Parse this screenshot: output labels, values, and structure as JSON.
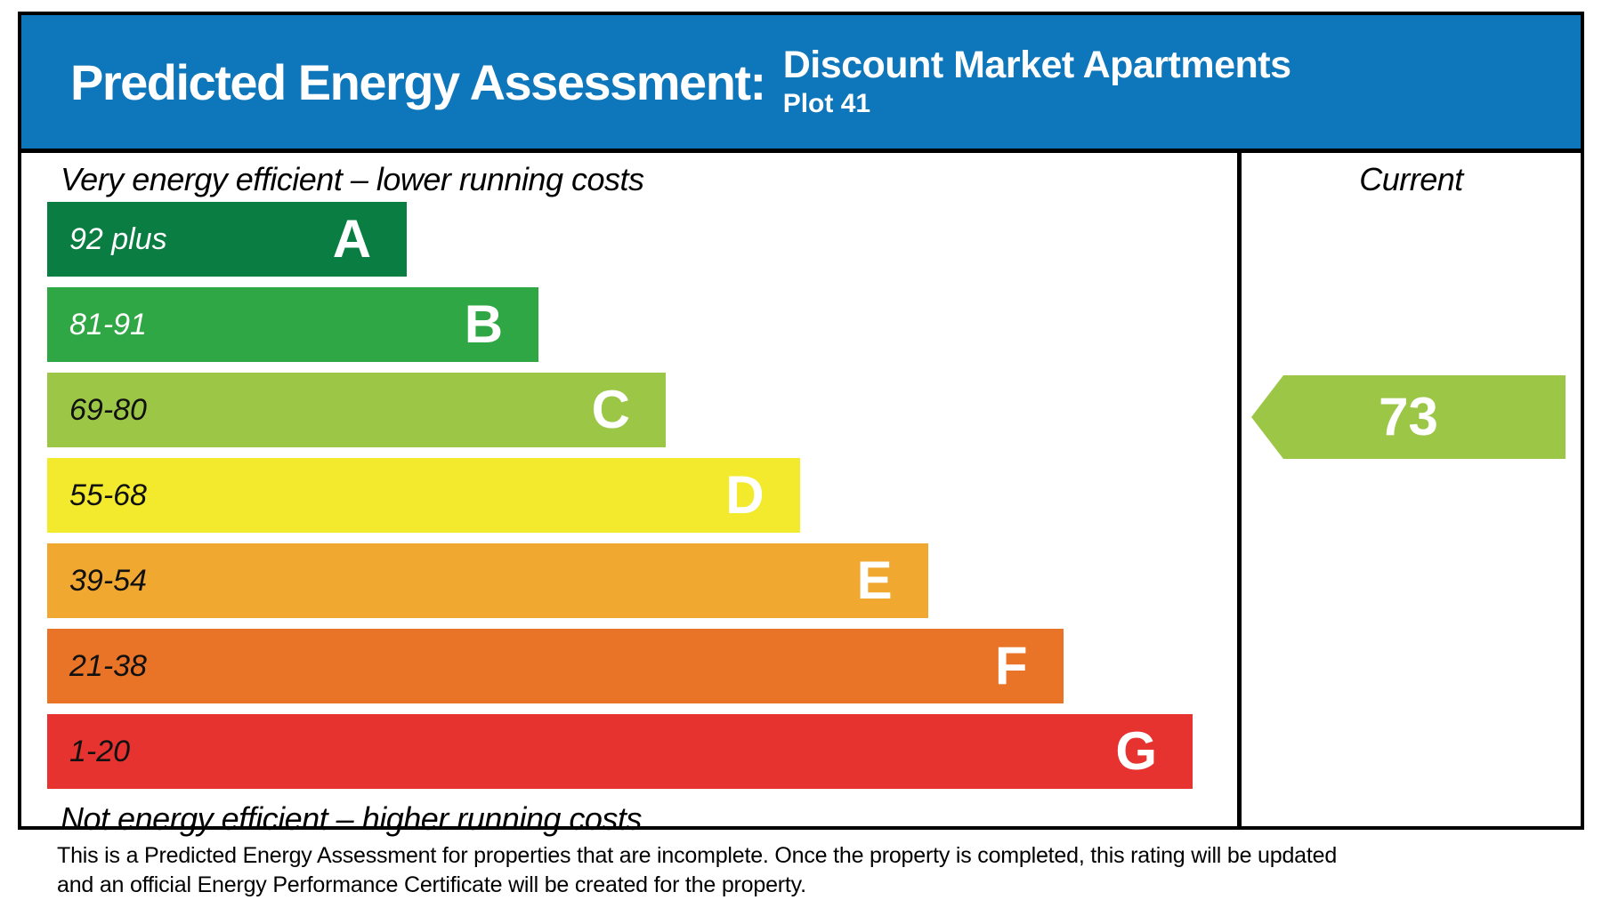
{
  "header": {
    "title": "Predicted Energy Assessment:",
    "property_name": "Discount Market Apartments",
    "plot": "Plot 41"
  },
  "colors": {
    "header_blue": "#0e76bb",
    "border_black": "#000000"
  },
  "chart_data": {
    "type": "bar",
    "title": "Predicted Energy Assessment",
    "top_label": "Very energy efficient – lower running costs",
    "bottom_label": "Not energy efficient – higher running costs",
    "column_header": "Current",
    "current": {
      "value": "73",
      "band": "C",
      "color": "#9cc646"
    },
    "bands": [
      {
        "letter": "A",
        "range": "92 plus",
        "color": "#0a7d42",
        "width_pct": 31.4,
        "range_text_color": "#ffffff"
      },
      {
        "letter": "B",
        "range": "81-91",
        "color": "#2fa744",
        "width_pct": 42.9,
        "range_text_color": "#ffffff"
      },
      {
        "letter": "C",
        "range": "69-80",
        "color": "#9cc646",
        "width_pct": 54.0,
        "range_text_color": "#111111"
      },
      {
        "letter": "D",
        "range": "55-68",
        "color": "#f3e92d",
        "width_pct": 65.7,
        "range_text_color": "#111111"
      },
      {
        "letter": "E",
        "range": "39-54",
        "color": "#f1a830",
        "width_pct": 76.9,
        "range_text_color": "#111111"
      },
      {
        "letter": "F",
        "range": "21-38",
        "color": "#e97327",
        "width_pct": 88.7,
        "range_text_color": "#111111"
      },
      {
        "letter": "G",
        "range": "1-20",
        "color": "#e6332f",
        "width_pct": 100,
        "range_text_color": "#111111"
      }
    ]
  },
  "footer": {
    "text": "This is a Predicted Energy Assessment for properties that are incomplete. Once the property is completed, this rating will be updated and an official Energy Performance Certificate will be created for the property."
  }
}
